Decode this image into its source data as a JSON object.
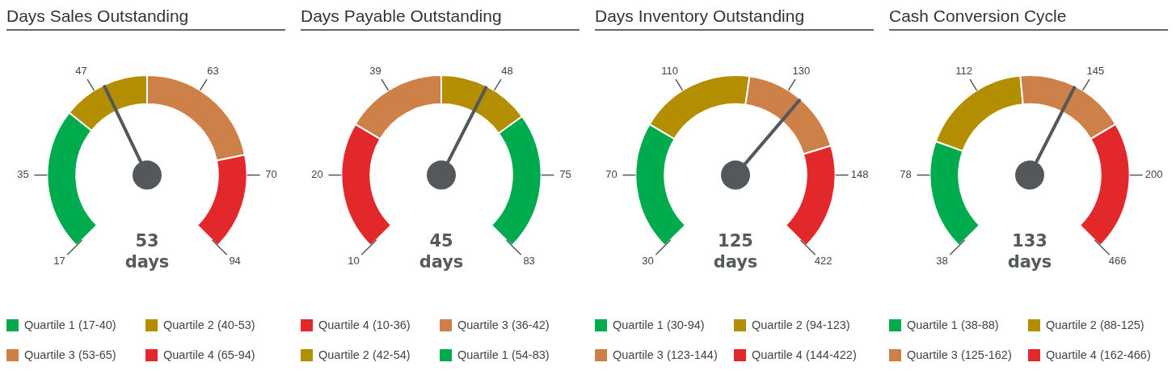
{
  "chart_data": [
    {
      "type": "donut",
      "title": "Days Sales Outstanding",
      "categories": [
        "Quartile 1 (17-40)",
        "Quartile 2 (40-53)",
        "Quartile 3 (53-65)",
        "Quartile 4 (65-94)"
      ],
      "values": [
        31,
        19,
        29,
        21
      ],
      "colors": [
        "#00ab4e",
        "#b38f00",
        "#cd8149",
        "#e2282a"
      ],
      "needle": "Quartile 2 (40-53)",
      "legend": "bottom",
      "annotations": [
        "17",
        "35",
        "47",
        "63",
        "70",
        "94",
        "53",
        "days"
      ]
    },
    {
      "type": "donut",
      "title": "Days Payable Outstanding",
      "categories": [
        "Quartile 4 (10-36)",
        "Quartile 3 (36-42)",
        "Quartile 2 (42-54)",
        "Quartile 1 (54-83)"
      ],
      "values": [
        28,
        22,
        20,
        30
      ],
      "colors": [
        "#e2282a",
        "#cd8149",
        "#b38f00",
        "#00ab4e"
      ],
      "needle": "Quartile 2 (42-54)",
      "legend": "bottom",
      "annotations": [
        "10",
        "20",
        "39",
        "48",
        "75",
        "83",
        "45",
        "days"
      ]
    },
    {
      "type": "donut",
      "title": "Days Inventory Outstanding",
      "categories": [
        "Quartile 1 (30-94)",
        "Quartile 2 (94-123)",
        "Quartile 3 (123-144)",
        "Quartile 4 (144-422)"
      ],
      "values": [
        28,
        25,
        24,
        23
      ],
      "colors": [
        "#00ab4e",
        "#b38f00",
        "#cd8149",
        "#e2282a"
      ],
      "needle": "Quartile 3 (123-144)",
      "legend": "bottom",
      "annotations": [
        "30",
        "70",
        "110",
        "130",
        "148",
        "422",
        "125",
        "days"
      ]
    },
    {
      "type": "donut",
      "title": "Cash Conversion Cycle",
      "categories": [
        "Quartile 1 (38-88)",
        "Quartile 2 (88-125)",
        "Quartile 3 (125-162)",
        "Quartile 4 (162-466)"
      ],
      "values": [
        24,
        24,
        24,
        28
      ],
      "colors": [
        "#00ab4e",
        "#b38f00",
        "#cd8149",
        "#e2282a"
      ],
      "needle": "Quartile 3 (125-162)",
      "legend": "bottom",
      "annotations": [
        "38",
        "78",
        "112",
        "145",
        "200",
        "466",
        "133",
        "days"
      ]
    }
  ]
}
